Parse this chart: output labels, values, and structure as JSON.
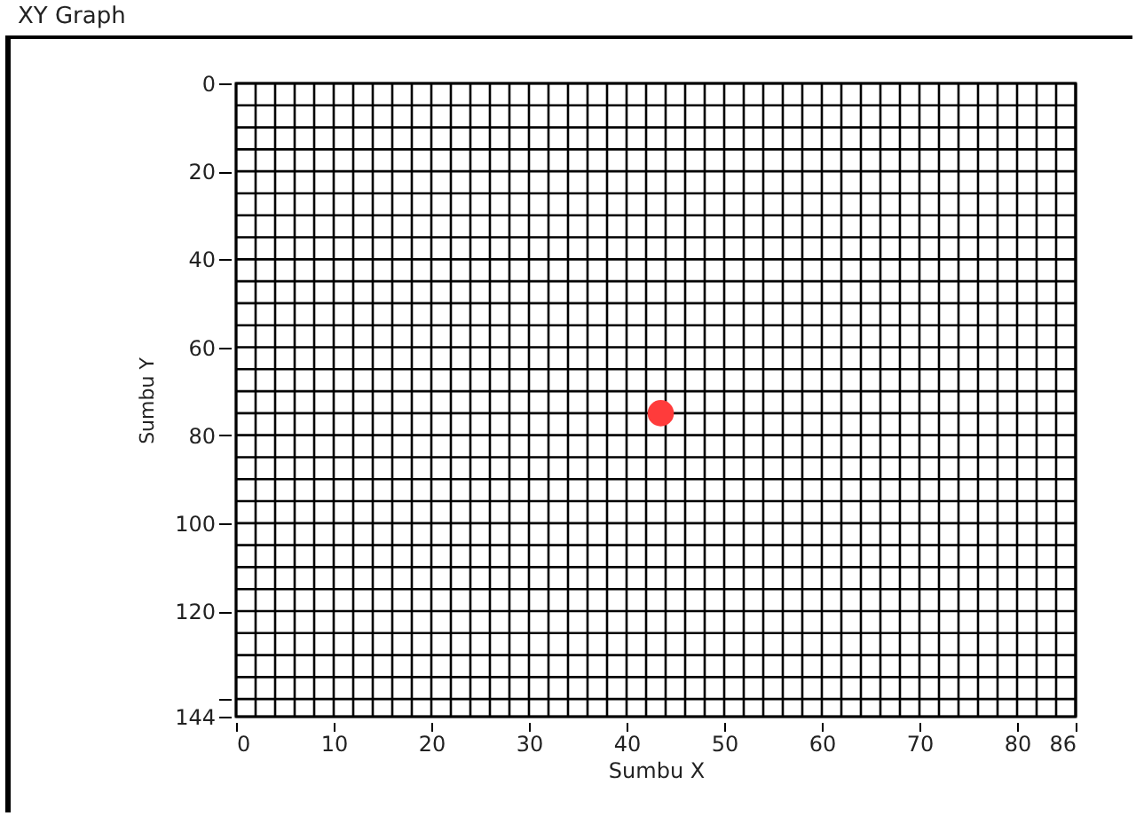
{
  "chart_data": {
    "type": "scatter",
    "title": "XY Graph",
    "xlabel": "Sumbu X",
    "ylabel": "Sumbu Y",
    "x": [
      43.5
    ],
    "series": [
      {
        "color": "#ff3b3b",
        "values": [
          75
        ]
      }
    ],
    "xlim": [
      0,
      86
    ],
    "xticks": [
      0,
      10,
      20,
      30,
      40,
      50,
      60,
      70,
      80,
      86
    ],
    "ylim": [
      144,
      0
    ],
    "yticks": [
      0,
      20,
      40,
      60,
      80,
      100,
      120,
      {
        "value": 140,
        "label": null
      },
      144
    ],
    "grid": true,
    "marker": "circle"
  }
}
